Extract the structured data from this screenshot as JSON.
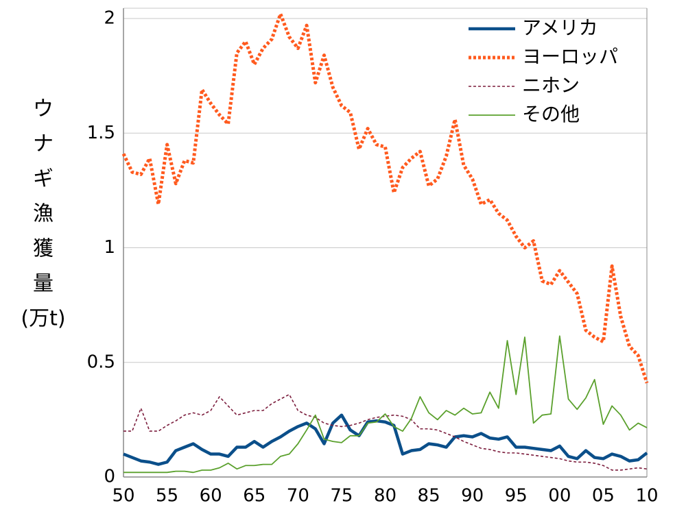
{
  "chart_data": {
    "type": "line",
    "ylabel": [
      "ウ",
      "ナ",
      "ギ",
      "漁",
      "獲",
      "量",
      "(万t)"
    ],
    "categories": [
      "50",
      null,
      null,
      null,
      null,
      "55",
      null,
      null,
      null,
      null,
      "60",
      null,
      null,
      null,
      null,
      "65",
      null,
      null,
      null,
      null,
      "70",
      null,
      null,
      null,
      null,
      "75",
      null,
      null,
      null,
      null,
      "80",
      null,
      null,
      null,
      null,
      "85",
      null,
      null,
      null,
      null,
      "90",
      null,
      null,
      null,
      null,
      "95",
      null,
      null,
      null,
      null,
      "00",
      null,
      null,
      null,
      null,
      "05",
      null,
      null,
      null,
      null,
      "10"
    ],
    "series": [
      {
        "name": "アメリカ",
        "color": "#0b4f8a",
        "style": "thick",
        "values": [
          0.1,
          0.085,
          0.07,
          0.065,
          0.055,
          0.065,
          0.115,
          0.13,
          0.145,
          0.12,
          0.1,
          0.1,
          0.09,
          0.13,
          0.13,
          0.155,
          0.13,
          0.155,
          0.175,
          0.2,
          0.22,
          0.235,
          0.21,
          0.145,
          0.235,
          0.27,
          0.205,
          0.18,
          0.24,
          0.245,
          0.24,
          0.225,
          0.1,
          0.115,
          0.12,
          0.145,
          0.14,
          0.13,
          0.175,
          0.18,
          0.175,
          0.19,
          0.17,
          0.165,
          0.175,
          0.13,
          0.13,
          0.125,
          0.12,
          0.115,
          0.135,
          0.09,
          0.08,
          0.115,
          0.085,
          0.08,
          0.1,
          0.09,
          0.07,
          0.075,
          0.105
        ]
      },
      {
        "name": "ヨーロッパ",
        "color": "#ff5a1e",
        "style": "dotted",
        "values": [
          1.41,
          1.33,
          1.32,
          1.39,
          1.19,
          1.45,
          1.28,
          1.38,
          1.37,
          1.69,
          1.63,
          1.58,
          1.54,
          1.85,
          1.9,
          1.8,
          1.87,
          1.91,
          2.02,
          1.92,
          1.87,
          1.97,
          1.72,
          1.84,
          1.7,
          1.62,
          1.59,
          1.43,
          1.52,
          1.45,
          1.44,
          1.24,
          1.35,
          1.39,
          1.42,
          1.27,
          1.3,
          1.4,
          1.56,
          1.36,
          1.3,
          1.19,
          1.21,
          1.15,
          1.12,
          1.05,
          1.0,
          1.03,
          0.855,
          0.84,
          0.9,
          0.85,
          0.8,
          0.64,
          0.61,
          0.59,
          0.92,
          0.7,
          0.57,
          0.53,
          0.41
        ]
      },
      {
        "name": "ニホン",
        "color": "#7b1c3c",
        "style": "dashed",
        "values": [
          0.2,
          0.2,
          0.3,
          0.2,
          0.2,
          0.225,
          0.245,
          0.27,
          0.28,
          0.27,
          0.29,
          0.35,
          0.31,
          0.27,
          0.28,
          0.29,
          0.29,
          0.32,
          0.34,
          0.36,
          0.29,
          0.27,
          0.26,
          0.235,
          0.225,
          0.22,
          0.225,
          0.235,
          0.25,
          0.26,
          0.265,
          0.27,
          0.265,
          0.25,
          0.21,
          0.21,
          0.205,
          0.19,
          0.175,
          0.155,
          0.14,
          0.125,
          0.12,
          0.11,
          0.105,
          0.105,
          0.1,
          0.095,
          0.09,
          0.085,
          0.08,
          0.07,
          0.065,
          0.065,
          0.06,
          0.05,
          0.03,
          0.03,
          0.035,
          0.04,
          0.035
        ]
      },
      {
        "name": "その他",
        "color": "#5aa02c",
        "style": "thin",
        "values": [
          0.02,
          0.02,
          0.02,
          0.02,
          0.02,
          0.02,
          0.025,
          0.025,
          0.02,
          0.03,
          0.03,
          0.04,
          0.06,
          0.035,
          0.05,
          0.05,
          0.055,
          0.055,
          0.09,
          0.1,
          0.145,
          0.205,
          0.27,
          0.165,
          0.155,
          0.15,
          0.18,
          0.18,
          0.235,
          0.24,
          0.275,
          0.22,
          0.2,
          0.255,
          0.35,
          0.28,
          0.25,
          0.29,
          0.27,
          0.3,
          0.275,
          0.28,
          0.37,
          0.3,
          0.595,
          0.36,
          0.61,
          0.235,
          0.27,
          0.275,
          0.615,
          0.34,
          0.295,
          0.345,
          0.425,
          0.23,
          0.31,
          0.27,
          0.205,
          0.235,
          0.215
        ]
      }
    ],
    "ylim": [
      0,
      2.045
    ],
    "yticks": [
      0,
      0.5,
      1,
      1.5,
      2
    ],
    "grid": true,
    "legend": "top-right"
  }
}
